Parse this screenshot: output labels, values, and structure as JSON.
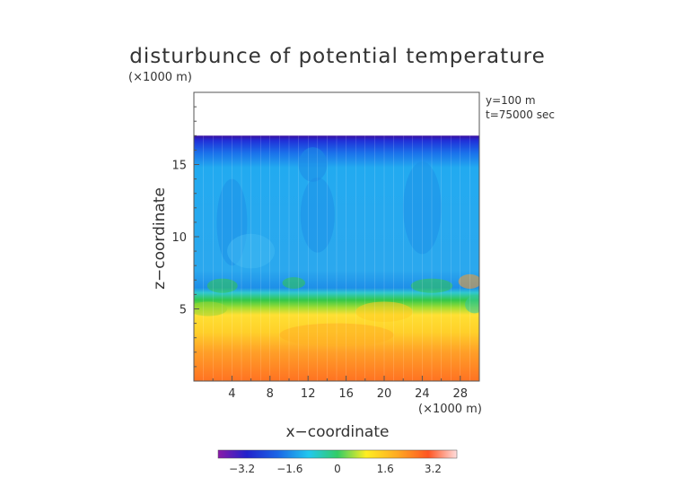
{
  "chart_data": {
    "type": "heatmap",
    "title": "disturbunce of potential temperature",
    "units_label": "(×1000 m)",
    "x_units_label": "(×1000 m)",
    "annotations": [
      "y=100 m",
      "t=75000 sec"
    ],
    "xlabel": "x−coordinate",
    "ylabel": "z−coordinate",
    "xlim": [
      0,
      30
    ],
    "ylim": [
      0,
      20
    ],
    "x_ticks": [
      4,
      8,
      12,
      16,
      20,
      24,
      28
    ],
    "y_ticks": [
      5,
      10,
      15
    ],
    "colorbar": {
      "range": [
        -4,
        4
      ],
      "ticks": [
        -3.2,
        -1.6,
        0,
        1.6,
        3.2
      ],
      "tick_labels": [
        "−3.2",
        "−1.6",
        "0",
        "1.6",
        "3.2"
      ]
    },
    "field_summary": [
      {
        "z_range": [
          17,
          20
        ],
        "value": null
      },
      {
        "z_range": [
          16.5,
          17
        ],
        "value": -3.0
      },
      {
        "z_range": [
          7,
          16.5
        ],
        "value": -1.6
      },
      {
        "z_range": [
          5.5,
          7
        ],
        "value": 0.3
      },
      {
        "z_range": [
          3,
          5.5
        ],
        "value": 1.4
      },
      {
        "z_range": [
          0,
          3
        ],
        "value": 2.6
      }
    ]
  }
}
